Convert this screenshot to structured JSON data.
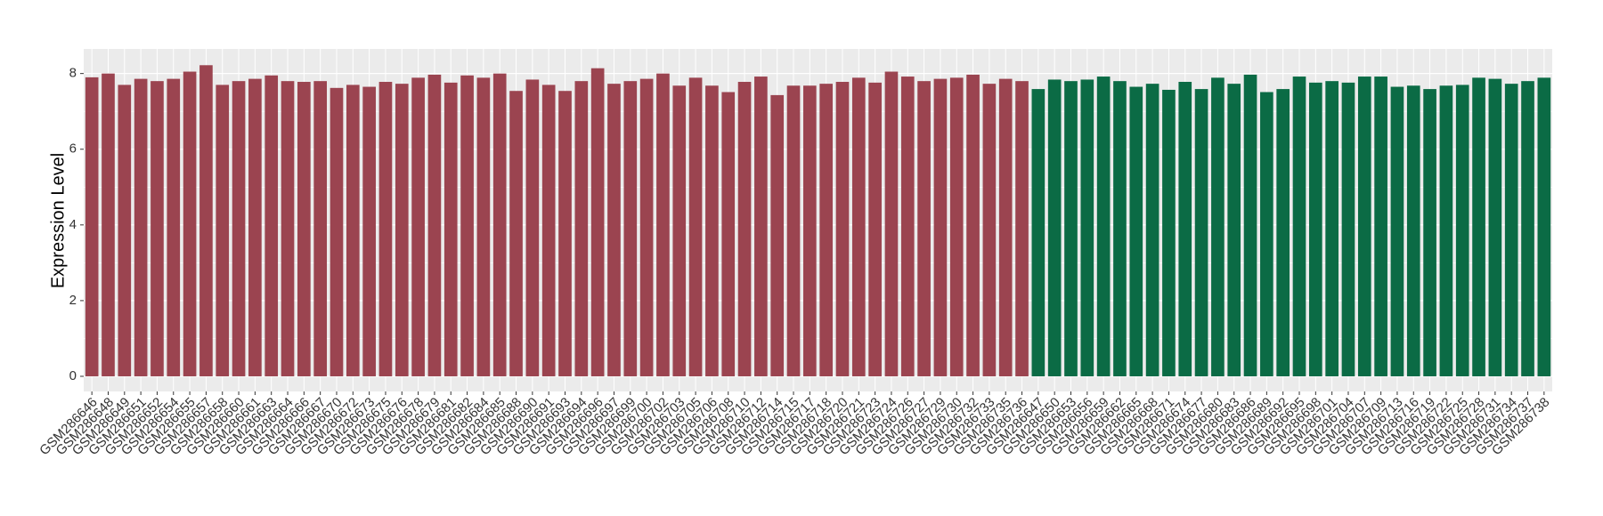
{
  "chart_data": {
    "type": "bar",
    "y_label": "Expression Level",
    "ylim": [
      -0.4,
      8.65
    ],
    "yticks": [
      0,
      2,
      4,
      6,
      8
    ],
    "grid": true,
    "series": [
      {
        "color": "#9b4450",
        "categories": [
          "GSM286646",
          "GSM286648",
          "GSM286649",
          "GSM286651",
          "GSM286652",
          "GSM286654",
          "GSM286655",
          "GSM286657",
          "GSM286658",
          "GSM286660",
          "GSM286661",
          "GSM286663",
          "GSM286664",
          "GSM286666",
          "GSM286667",
          "GSM286670",
          "GSM286672",
          "GSM286673",
          "GSM286675",
          "GSM286676",
          "GSM286678",
          "GSM286679",
          "GSM286681",
          "GSM286682",
          "GSM286684",
          "GSM286685",
          "GSM286688",
          "GSM286690",
          "GSM286691",
          "GSM286693",
          "GSM286694",
          "GSM286696",
          "GSM286697",
          "GSM286699",
          "GSM286700",
          "GSM286702",
          "GSM286703",
          "GSM286705",
          "GSM286706",
          "GSM286708",
          "GSM286710",
          "GSM286712",
          "GSM286714",
          "GSM286715",
          "GSM286717",
          "GSM286718",
          "GSM286720",
          "GSM286721",
          "GSM286723",
          "GSM286724",
          "GSM286726",
          "GSM286727",
          "GSM286729",
          "GSM286730",
          "GSM286732",
          "GSM286733",
          "GSM286735",
          "GSM286736"
        ],
        "values": [
          7.9,
          8.0,
          7.7,
          7.86,
          7.8,
          7.86,
          8.05,
          8.22,
          7.7,
          7.8,
          7.86,
          7.95,
          7.8,
          7.78,
          7.8,
          7.62,
          7.7,
          7.65,
          7.78,
          7.73,
          7.89,
          7.97,
          7.76,
          7.95,
          7.89,
          8.0,
          7.54,
          7.84,
          7.7,
          7.54,
          7.8,
          8.14,
          7.73,
          7.8,
          7.86,
          8.0,
          7.68,
          7.89,
          7.68,
          7.51,
          7.78,
          7.92,
          7.43,
          7.68,
          7.68,
          7.73,
          7.78,
          7.89,
          7.76,
          8.05,
          7.92,
          7.8,
          7.86,
          7.89,
          7.97,
          7.73,
          7.86,
          7.8
        ]
      },
      {
        "color": "#0b6b45",
        "categories": [
          "GSM286647",
          "GSM286650",
          "GSM286653",
          "GSM286656",
          "GSM286659",
          "GSM286662",
          "GSM286665",
          "GSM286668",
          "GSM286671",
          "GSM286674",
          "GSM286677",
          "GSM286680",
          "GSM286683",
          "GSM286686",
          "GSM286689",
          "GSM286692",
          "GSM286695",
          "GSM286698",
          "GSM286701",
          "GSM286704",
          "GSM286707",
          "GSM286709",
          "GSM286713",
          "GSM286716",
          "GSM286719",
          "GSM286722",
          "GSM286725",
          "GSM286728",
          "GSM286731",
          "GSM286734",
          "GSM286737",
          "GSM286738"
        ],
        "values": [
          7.59,
          7.84,
          7.8,
          7.84,
          7.92,
          7.8,
          7.65,
          7.73,
          7.57,
          7.78,
          7.59,
          7.89,
          7.73,
          7.97,
          7.51,
          7.59,
          7.92,
          7.76,
          7.8,
          7.76,
          7.92,
          7.92,
          7.65,
          7.68,
          7.59,
          7.68,
          7.7,
          7.89,
          7.86,
          7.73,
          7.8,
          7.89
        ]
      }
    ]
  }
}
